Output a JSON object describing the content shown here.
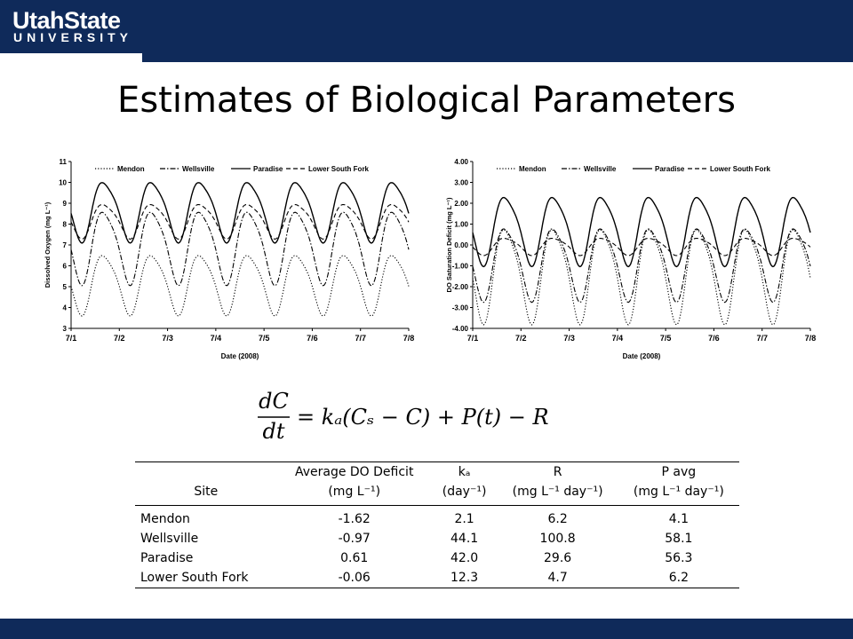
{
  "header": {
    "logo_line1": "UtahState",
    "logo_line2": "UNIVERSITY"
  },
  "slide": {
    "title": "Estimates of Biological Parameters"
  },
  "colors": {
    "banner": "#0f2a5a",
    "accent": "#1f4e96"
  },
  "legend": [
    "Mendon",
    "Wellsville",
    "Paradise",
    "Lower South Fork"
  ],
  "chart_data": [
    {
      "type": "line",
      "xlabel": "Date (2008)",
      "ylabel": "Dissolved Oxygen (mg L⁻¹)",
      "x_ticks": [
        "7/1",
        "7/2",
        "7/3",
        "7/4",
        "7/5",
        "7/6",
        "7/7",
        "7/8"
      ],
      "ylim": [
        3,
        11
      ],
      "y_ticks": [
        "3",
        "4",
        "5",
        "6",
        "7",
        "8",
        "9",
        "10",
        "11"
      ],
      "legend_position": "top",
      "series": [
        {
          "name": "Mendon",
          "style": "dotted",
          "mean": 5.2,
          "amp": 1.4
        },
        {
          "name": "Wellsville",
          "style": "dash-dot",
          "mean": 7.0,
          "amp": 1.7
        },
        {
          "name": "Paradise",
          "style": "solid",
          "mean": 8.7,
          "amp": 1.4
        },
        {
          "name": "Lower South Fork",
          "style": "dashed",
          "mean": 8.2,
          "amp": 0.8
        }
      ]
    },
    {
      "type": "line",
      "xlabel": "Date (2008)",
      "ylabel": "DO Saturation Deficit (mg L⁻¹)",
      "x_ticks": [
        "7/1",
        "7/2",
        "7/3",
        "7/4",
        "7/5",
        "7/6",
        "7/7",
        "7/8"
      ],
      "ylim": [
        -4,
        4
      ],
      "y_ticks": [
        "-4.00",
        "-3.00",
        "-2.00",
        "-1.00",
        "0.00",
        "1.00",
        "2.00",
        "3.00",
        "4.00"
      ],
      "legend_position": "top",
      "series": [
        {
          "name": "Mendon",
          "style": "dotted",
          "mean": -1.3,
          "amp": 2.2
        },
        {
          "name": "Wellsville",
          "style": "dash-dot",
          "mean": -0.8,
          "amp": 1.7
        },
        {
          "name": "Paradise",
          "style": "solid",
          "mean": 0.8,
          "amp": 1.6
        },
        {
          "name": "Lower South Fork",
          "style": "dashed",
          "mean": -0.05,
          "amp": 0.4
        }
      ]
    }
  ],
  "equation": {
    "lhs_num": "dC",
    "lhs_den": "dt",
    "rhs": "= kₐ(Cₛ − C) + P(t) − R"
  },
  "table": {
    "header_row1": {
      "site": "",
      "do_deficit": "Average DO Deficit",
      "ka": "kₐ",
      "r": "R",
      "pavg": "P avg"
    },
    "header_row2": {
      "site": "Site",
      "do_deficit": "(mg L⁻¹)",
      "ka": "(day⁻¹)",
      "r": "(mg L⁻¹ day⁻¹)",
      "pavg": "(mg L⁻¹ day⁻¹)"
    },
    "rows": [
      {
        "site": "Mendon",
        "do_deficit": "-1.62",
        "ka": "2.1",
        "r": "6.2",
        "pavg": "4.1"
      },
      {
        "site": "Wellsville",
        "do_deficit": "-0.97",
        "ka": "44.1",
        "r": "100.8",
        "pavg": "58.1"
      },
      {
        "site": "Paradise",
        "do_deficit": "0.61",
        "ka": "42.0",
        "r": "29.6",
        "pavg": "56.3"
      },
      {
        "site": "Lower South Fork",
        "do_deficit": "-0.06",
        "ka": "12.3",
        "r": "4.7",
        "pavg": "6.2"
      }
    ]
  }
}
